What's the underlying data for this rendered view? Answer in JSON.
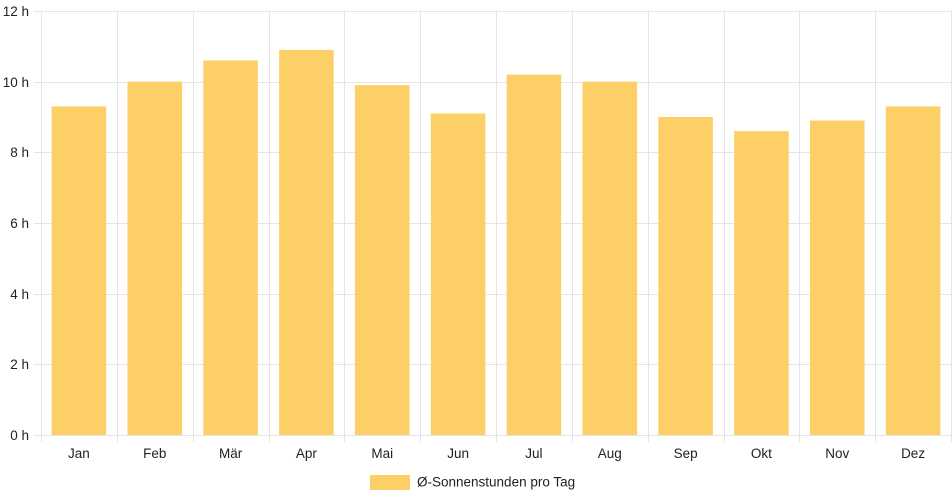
{
  "chart_data": {
    "type": "bar",
    "categories": [
      "Jan",
      "Feb",
      "Mär",
      "Apr",
      "Mai",
      "Jun",
      "Jul",
      "Aug",
      "Sep",
      "Okt",
      "Nov",
      "Dez"
    ],
    "series": [
      {
        "name": "Ø-Sonnenstunden pro Tag",
        "values": [
          9.3,
          10.0,
          10.6,
          10.9,
          9.9,
          9.1,
          10.2,
          10.0,
          9.0,
          8.6,
          8.9,
          9.3
        ],
        "color": "#fdd067"
      }
    ],
    "y_ticks": [
      "0 h",
      "2 h",
      "4 h",
      "6 h",
      "8 h",
      "10 h",
      "12 h"
    ],
    "ylim": [
      0,
      12
    ],
    "grid": true,
    "legend_position": "bottom-center",
    "grid_color": "#e5e5e5"
  }
}
